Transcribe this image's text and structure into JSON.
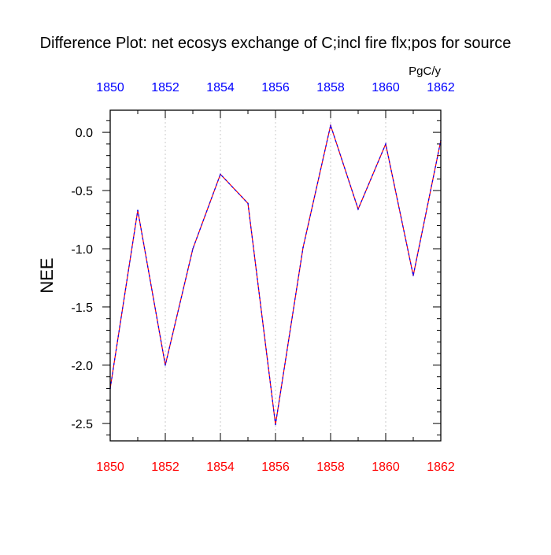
{
  "chart_data": {
    "type": "line",
    "title": "Difference Plot: net ecosys exchange of C;incl fire flx;pos for source",
    "units": "PgC/y",
    "ylabel": "NEE",
    "xlabel": "",
    "x": [
      1850,
      1851,
      1852,
      1853,
      1854,
      1855,
      1856,
      1857,
      1858,
      1859,
      1860,
      1861,
      1862
    ],
    "series": [
      {
        "values": [
          -2.2,
          -0.67,
          -2.0,
          -1.0,
          -0.36,
          -0.61,
          -2.51,
          -0.99,
          0.06,
          -0.66,
          -0.1,
          -1.23,
          -0.07
        ],
        "colors": [
          "#ff0000",
          "#0000ff"
        ]
      }
    ],
    "xlim": [
      1850,
      1862
    ],
    "ylim": [
      -2.65,
      0.19
    ],
    "xticks_major": [
      1850,
      1852,
      1854,
      1856,
      1858,
      1860,
      1862
    ],
    "xticks_top": [
      1850,
      1852,
      1854,
      1856,
      1858,
      1860,
      1862
    ],
    "yticks_major": [
      0.0,
      -0.5,
      -1.0,
      -1.5,
      -2.0,
      -2.5
    ],
    "ytick_labels": [
      "0.0",
      "-0.5",
      "-1.0",
      "-1.5",
      "-2.0",
      "-2.5"
    ],
    "bottom_axis_color": "#ff0000",
    "top_axis_color": "#0000ff",
    "grid": "vertical dotted at major x ticks"
  }
}
